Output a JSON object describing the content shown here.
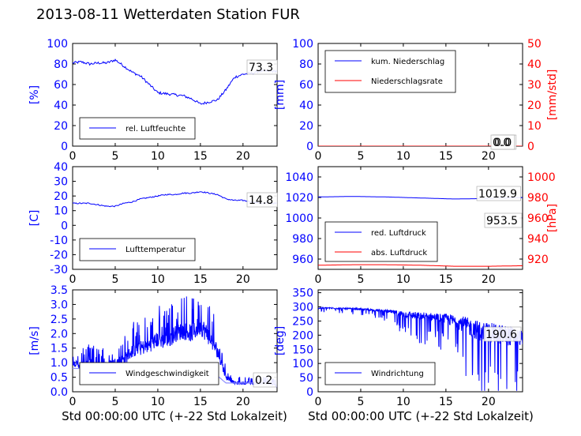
{
  "figure": {
    "title": "2013-08-11 Wetterdaten Station FUR",
    "xlabel": "Std 00:00:00 UTC (+-22 Std Lokalzeit)"
  },
  "colors": {
    "primary": "#0000ff",
    "secondary": "#ff0000",
    "light": "#8f8fff",
    "axis": "#000000"
  },
  "chart_data": [
    {
      "type": "line",
      "panel": "humidity",
      "ylabel": "[%]",
      "xlim": [
        0,
        24
      ],
      "ylim": [
        0,
        100
      ],
      "xticks": [
        0,
        5,
        10,
        15,
        20
      ],
      "yticks": [
        0,
        20,
        40,
        60,
        80,
        100
      ],
      "legend": "lower-left",
      "series": [
        {
          "name": "rel. Luftfeuchte",
          "color": "#0000ff",
          "x": [
            0,
            1,
            2,
            3,
            4,
            5,
            6,
            7,
            8,
            9,
            10,
            11,
            12,
            13,
            14,
            15,
            16,
            17,
            18,
            19,
            20,
            21,
            22,
            23,
            24
          ],
          "y": [
            81,
            82,
            80,
            81,
            81,
            84,
            78,
            72,
            68,
            60,
            52,
            51,
            50,
            49,
            46,
            41,
            43,
            45,
            55,
            67,
            70,
            71,
            73,
            73,
            73
          ]
        }
      ],
      "last_value_label": "73.3"
    },
    {
      "type": "line",
      "panel": "precipitation",
      "ylabel": "[mm]",
      "ylabel_right": "[mm/std]",
      "xlim": [
        0,
        24
      ],
      "ylim": [
        0,
        100
      ],
      "ylim_right": [
        0,
        50
      ],
      "xticks": [
        0,
        5,
        10,
        15,
        20
      ],
      "yticks": [
        0,
        20,
        40,
        60,
        80,
        100
      ],
      "yticks_right": [
        0,
        10,
        20,
        30,
        40,
        50
      ],
      "legend": "upper-left",
      "series": [
        {
          "name": "kum. Niederschlag",
          "color": "#0000ff",
          "x": [
            0,
            24
          ],
          "y": [
            0,
            0
          ]
        },
        {
          "name": "Niederschlagsrate",
          "color": "#ff0000",
          "x": [
            0,
            24
          ],
          "y": [
            0,
            0
          ]
        }
      ],
      "last_value_labels": [
        "0.0",
        "0.0"
      ]
    },
    {
      "type": "line",
      "panel": "temperature",
      "ylabel": "[C]",
      "xlim": [
        0,
        24
      ],
      "ylim": [
        -30,
        40
      ],
      "xticks": [
        0,
        5,
        10,
        15,
        20
      ],
      "yticks": [
        -30,
        -20,
        -10,
        0,
        10,
        20,
        30,
        40
      ],
      "legend": "lower-left",
      "series": [
        {
          "name": "Lufttemperatur",
          "color": "#0000ff",
          "x": [
            0,
            1,
            2,
            3,
            4,
            5,
            6,
            7,
            8,
            9,
            10,
            11,
            12,
            13,
            14,
            15,
            16,
            17,
            18,
            19,
            20,
            21,
            22,
            23,
            24
          ],
          "y": [
            15,
            15,
            15,
            14,
            13,
            13,
            15,
            16,
            18,
            19,
            20,
            21,
            21,
            22,
            22,
            23,
            22,
            21,
            18,
            17,
            17,
            16,
            15,
            15,
            15
          ]
        }
      ],
      "last_value_label": "14.8"
    },
    {
      "type": "line",
      "panel": "pressure",
      "ylabel_right": "[hPa]",
      "xlim": [
        0,
        24
      ],
      "ylim": [
        950,
        1050
      ],
      "ylim_right": [
        910,
        1010
      ],
      "xticks": [
        0,
        5,
        10,
        15,
        20
      ],
      "yticks": [
        960,
        980,
        1000,
        1020,
        1040
      ],
      "yticks_right": [
        920,
        940,
        960,
        980,
        1000
      ],
      "legend": "lower-left",
      "series": [
        {
          "name": "red. Luftdruck",
          "color": "#0000ff",
          "x": [
            0,
            4,
            8,
            12,
            16,
            20,
            24
          ],
          "y": [
            1020.5,
            1021.0,
            1020.5,
            1019.5,
            1018.5,
            1019.0,
            1019.9
          ]
        },
        {
          "name": "abs. Luftdruck",
          "color": "#ff0000",
          "x": [
            0,
            4,
            8,
            12,
            16,
            20,
            24
          ],
          "y": [
            954.0,
            954.5,
            954.5,
            954.0,
            953.0,
            953.0,
            953.5
          ]
        }
      ],
      "last_value_labels": [
        "1019.9",
        "953.5"
      ]
    },
    {
      "type": "line",
      "panel": "wind-speed",
      "ylabel": "[m/s]",
      "xlim": [
        0,
        24
      ],
      "ylim": [
        0,
        3.5
      ],
      "xticks": [
        0,
        5,
        10,
        15,
        20
      ],
      "yticks": [
        0.0,
        0.5,
        1.0,
        1.5,
        2.0,
        2.5,
        3.0,
        3.5
      ],
      "legend": "lower-left",
      "series": [
        {
          "name": "Windgeschwindigkeit",
          "color": "#0000ff",
          "x": [
            0,
            1,
            2,
            3,
            4,
            5,
            6,
            7,
            8,
            9,
            10,
            11,
            12,
            13,
            14,
            15,
            16,
            17,
            18,
            19,
            20,
            21,
            22,
            23,
            24
          ],
          "y": [
            1.0,
            0.9,
            1.0,
            0.9,
            0.9,
            1.0,
            1.1,
            1.4,
            1.5,
            1.6,
            1.8,
            1.7,
            2.0,
            2.1,
            2.0,
            2.3,
            1.9,
            1.4,
            0.5,
            0.3,
            0.3,
            0.3,
            0.3,
            0.3,
            0.2
          ],
          "noise": [
            0.2,
            0.25,
            0.3,
            0.3,
            0.3,
            0.35,
            0.4,
            0.45,
            0.5,
            0.5,
            0.55,
            0.55,
            0.6,
            0.6,
            0.6,
            0.7,
            0.6,
            0.5,
            0.15,
            0.1,
            0.1,
            0.1,
            0.1,
            0.1,
            0.1
          ]
        },
        {
          "name": "",
          "color": "#8f8fff",
          "x": [
            0,
            2,
            4,
            6,
            8,
            10,
            12,
            14,
            16,
            18
          ],
          "y": [
            0.8,
            0.8,
            0.8,
            0.8,
            0.8,
            0.8,
            0.8,
            0.8,
            0.8,
            0.3
          ]
        }
      ],
      "last_value_label": "0.2"
    },
    {
      "type": "line",
      "panel": "wind-direction",
      "ylabel": "[deg]",
      "xlim": [
        0,
        24
      ],
      "ylim": [
        0,
        360
      ],
      "xticks": [
        0,
        5,
        10,
        15,
        20
      ],
      "yticks": [
        0,
        50,
        100,
        150,
        200,
        250,
        300,
        350
      ],
      "legend": "lower-left",
      "series": [
        {
          "name": "Windrichtung",
          "color": "#0000ff",
          "x": [
            0,
            1,
            2,
            3,
            4,
            5,
            6,
            7,
            8,
            9,
            10,
            11,
            12,
            13,
            14,
            15,
            16,
            17,
            18,
            19,
            20,
            21,
            22,
            23,
            24
          ],
          "y": [
            295,
            296,
            295,
            294,
            293,
            292,
            290,
            288,
            285,
            280,
            275,
            270,
            268,
            265,
            262,
            258,
            250,
            240,
            225,
            215,
            210,
            205,
            200,
            195,
            191
          ],
          "noise": [
            10,
            10,
            10,
            10,
            12,
            12,
            14,
            16,
            20,
            30,
            45,
            50,
            55,
            60,
            60,
            70,
            90,
            110,
            130,
            140,
            140,
            140,
            140,
            140,
            100
          ]
        }
      ],
      "last_value_label": "190.6"
    }
  ]
}
